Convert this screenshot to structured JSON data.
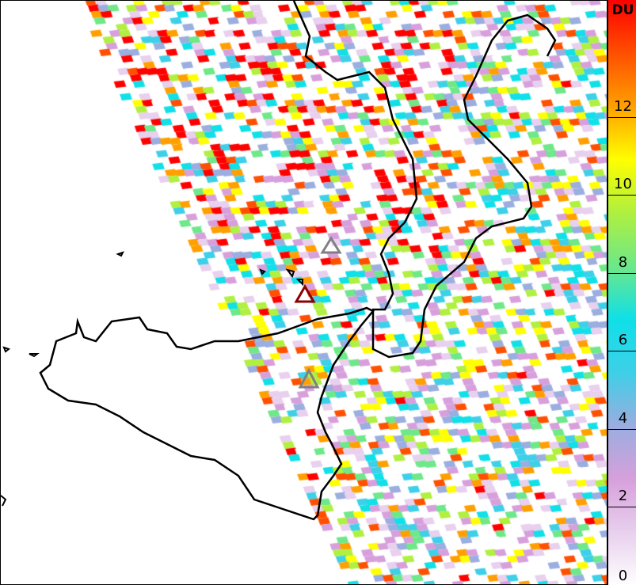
{
  "colorbar": {
    "unit": "DU",
    "ticks": [
      "0",
      "2",
      "4",
      "6",
      "8",
      "10",
      "12"
    ],
    "range": [
      0,
      15
    ],
    "colormap": [
      "#ffffff",
      "#e8d0ee",
      "#d7a0dc",
      "#9aaee0",
      "#3ed0e8",
      "#10e0e8",
      "#6ee888",
      "#b0f040",
      "#ffff00",
      "#ffa000",
      "#ff5000",
      "#ff0000"
    ]
  },
  "map": {
    "coastline_color": "#000000",
    "markers": [
      {
        "name": "volcano-1",
        "color": "#808080"
      },
      {
        "name": "volcano-2",
        "color": "#8b0000"
      },
      {
        "name": "volcano-3",
        "color": "#808080"
      }
    ]
  }
}
